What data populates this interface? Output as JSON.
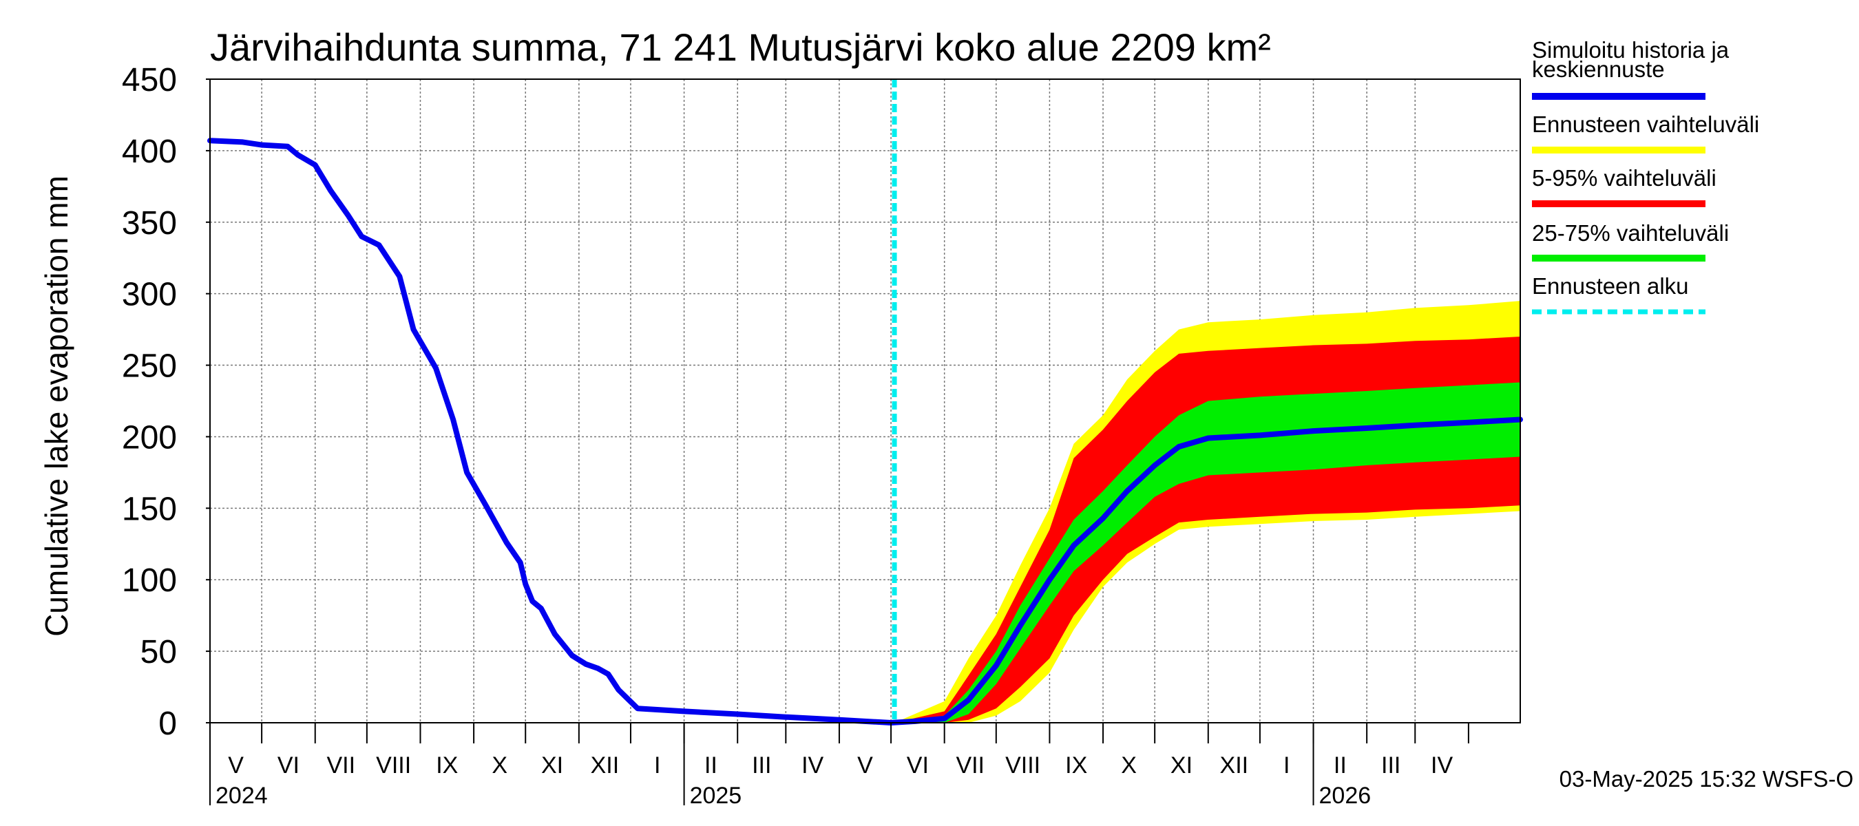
{
  "chart_data": {
    "type": "area",
    "title": "Järvihaihdunta summa, 71 241 Mutusjärvi koko alue 2209 km²",
    "ylabel": "Cumulative lake evaporation   mm",
    "ylim": [
      0,
      450
    ],
    "yticks": [
      "0",
      "50",
      "100",
      "150",
      "200",
      "250",
      "300",
      "350",
      "400",
      "450"
    ],
    "xlim": [
      "2024-04-01",
      "2026-05-01"
    ],
    "grid": true,
    "months": [
      "V",
      "VI",
      "VII",
      "VIII",
      "IX",
      "X",
      "XI",
      "XII",
      "I",
      "II",
      "III",
      "IV",
      "V",
      "VI",
      "VII",
      "VIII",
      "IX",
      "X",
      "XI",
      "XII",
      "I",
      "II",
      "III",
      "IV"
    ],
    "years": [
      {
        "label": "2024",
        "date": "2024-04-01"
      },
      {
        "label": "2025",
        "date": "2025-01-01"
      },
      {
        "label": "2026",
        "date": "2026-01-01"
      }
    ],
    "forecast_start": "2025-05-03",
    "legend_position": "right",
    "series": [
      {
        "name": "Simuloitu historia ja keskiennuste",
        "color": "#0000ee",
        "points": [
          [
            "2024-04-01",
            407
          ],
          [
            "2024-04-20",
            406
          ],
          [
            "2024-05-01",
            404
          ],
          [
            "2024-05-16",
            403
          ],
          [
            "2024-05-22",
            397
          ],
          [
            "2024-06-01",
            390
          ],
          [
            "2024-06-10",
            372
          ],
          [
            "2024-06-20",
            355
          ],
          [
            "2024-06-28",
            340
          ],
          [
            "2024-07-08",
            334
          ],
          [
            "2024-07-20",
            312
          ],
          [
            "2024-07-28",
            275
          ],
          [
            "2024-08-10",
            248
          ],
          [
            "2024-08-20",
            212
          ],
          [
            "2024-08-28",
            175
          ],
          [
            "2024-09-08",
            152
          ],
          [
            "2024-09-20",
            126
          ],
          [
            "2024-09-28",
            112
          ],
          [
            "2024-10-01",
            97
          ],
          [
            "2024-10-05",
            85
          ],
          [
            "2024-10-10",
            80
          ],
          [
            "2024-10-18",
            62
          ],
          [
            "2024-10-28",
            47
          ],
          [
            "2024-11-05",
            41
          ],
          [
            "2024-11-12",
            38
          ],
          [
            "2024-11-18",
            34
          ],
          [
            "2024-11-24",
            23
          ],
          [
            "2024-12-05",
            10
          ],
          [
            "2025-01-01",
            8
          ],
          [
            "2025-02-01",
            6
          ],
          [
            "2025-03-01",
            4
          ],
          [
            "2025-04-01",
            2
          ],
          [
            "2025-05-01",
            0
          ],
          [
            "2025-05-15",
            1
          ],
          [
            "2025-06-01",
            3
          ],
          [
            "2025-06-15",
            16
          ],
          [
            "2025-07-01",
            40
          ],
          [
            "2025-07-15",
            68
          ],
          [
            "2025-08-01",
            100
          ],
          [
            "2025-08-15",
            124
          ],
          [
            "2025-09-01",
            143
          ],
          [
            "2025-09-15",
            162
          ],
          [
            "2025-10-01",
            180
          ],
          [
            "2025-10-15",
            193
          ],
          [
            "2025-11-01",
            199
          ],
          [
            "2025-12-01",
            201
          ],
          [
            "2026-01-01",
            204
          ],
          [
            "2026-02-01",
            206
          ],
          [
            "2026-03-01",
            208
          ],
          [
            "2026-04-01",
            210
          ],
          [
            "2026-05-01",
            212
          ]
        ]
      },
      {
        "name": "Ennusteen vaihteluväli",
        "color": "#ffff00",
        "x": [
          "2025-05-03",
          "2025-06-01",
          "2025-06-15",
          "2025-07-01",
          "2025-07-15",
          "2025-08-01",
          "2025-08-15",
          "2025-09-01",
          "2025-09-15",
          "2025-10-01",
          "2025-10-15",
          "2025-11-01",
          "2025-12-01",
          "2026-01-01",
          "2026-02-01",
          "2026-03-01",
          "2026-04-01",
          "2026-05-01"
        ],
        "upper": [
          0,
          15,
          45,
          75,
          110,
          150,
          195,
          215,
          240,
          260,
          275,
          280,
          282,
          285,
          287,
          290,
          292,
          295
        ],
        "lower": [
          0,
          0,
          0,
          5,
          15,
          35,
          65,
          95,
          112,
          125,
          135,
          137,
          139,
          141,
          142,
          144,
          146,
          148
        ]
      },
      {
        "name": "5-95% vaihteluväli",
        "color": "#ff0000",
        "x": [
          "2025-05-03",
          "2025-06-01",
          "2025-06-15",
          "2025-07-01",
          "2025-07-15",
          "2025-08-01",
          "2025-08-15",
          "2025-09-01",
          "2025-09-15",
          "2025-10-01",
          "2025-10-15",
          "2025-11-01",
          "2025-12-01",
          "2026-01-01",
          "2026-02-01",
          "2026-03-01",
          "2026-04-01",
          "2026-05-01"
        ],
        "upper": [
          0,
          8,
          33,
          62,
          95,
          135,
          185,
          205,
          225,
          245,
          258,
          260,
          262,
          264,
          265,
          267,
          268,
          270
        ],
        "lower": [
          0,
          0,
          2,
          10,
          25,
          45,
          75,
          100,
          118,
          130,
          140,
          142,
          144,
          146,
          147,
          149,
          150,
          152
        ]
      },
      {
        "name": "25-75% vaihteluväli",
        "color": "#00ee00",
        "x": [
          "2025-05-03",
          "2025-06-01",
          "2025-06-15",
          "2025-07-01",
          "2025-07-15",
          "2025-08-01",
          "2025-08-15",
          "2025-09-01",
          "2025-09-15",
          "2025-10-01",
          "2025-10-15",
          "2025-11-01",
          "2025-12-01",
          "2026-01-01",
          "2026-02-01",
          "2026-03-01",
          "2026-04-01",
          "2026-05-01"
        ],
        "upper": [
          0,
          5,
          23,
          50,
          82,
          115,
          142,
          162,
          180,
          200,
          215,
          225,
          228,
          230,
          232,
          234,
          236,
          238
        ],
        "lower": [
          0,
          0,
          6,
          27,
          52,
          82,
          106,
          124,
          140,
          158,
          167,
          173,
          175,
          177,
          180,
          182,
          184,
          186
        ]
      }
    ],
    "forecast_start_legend": {
      "name": "Ennusteen alku",
      "color": "#00eeee"
    }
  },
  "legend": [
    {
      "key": "sim",
      "lines": [
        "Simuloitu historia ja",
        "keskiennuste"
      ],
      "color": "#0000ee",
      "style": "solid"
    },
    {
      "key": "range",
      "lines": [
        "Ennusteen vaihteluväli"
      ],
      "color": "#ffff00",
      "style": "solid"
    },
    {
      "key": "p5_95",
      "lines": [
        "5-95% vaihteluväli"
      ],
      "color": "#ff0000",
      "style": "solid"
    },
    {
      "key": "p25_75",
      "lines": [
        "25-75% vaihteluväli"
      ],
      "color": "#00ee00",
      "style": "solid"
    },
    {
      "key": "start",
      "lines": [
        "Ennusteen alku"
      ],
      "color": "#00eeee",
      "style": "dashed"
    }
  ],
  "timestamp": "03-May-2025 15:32 WSFS-O"
}
